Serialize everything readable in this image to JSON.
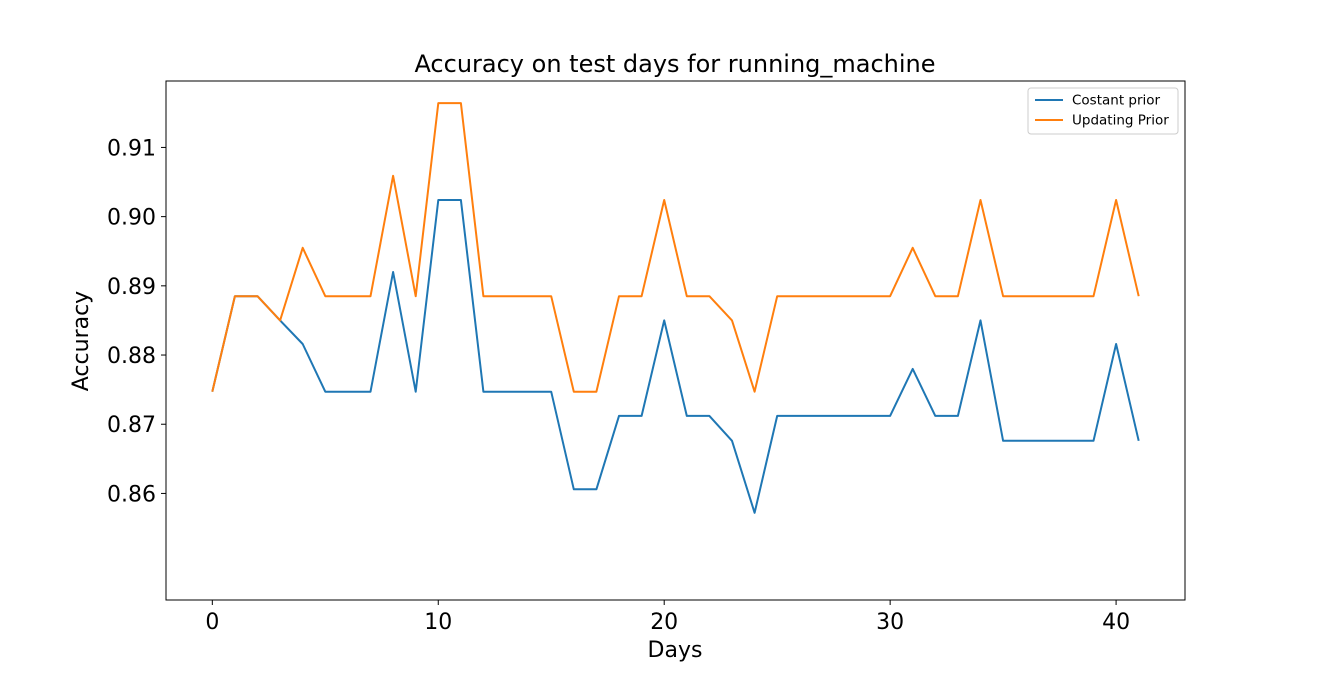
{
  "chart_data": {
    "type": "line",
    "title": "Accuracy on test days for running_machine",
    "xlabel": "Days",
    "ylabel": "Accuracy",
    "xlim": [
      -2.05,
      43.05
    ],
    "ylim": [
      0.8446,
      0.9196
    ],
    "xticks": [
      0,
      10,
      20,
      30,
      40
    ],
    "xtick_labels": [
      "0",
      "10",
      "20",
      "30",
      "40"
    ],
    "yticks": [
      0.86,
      0.87,
      0.88,
      0.89,
      0.9,
      0.91
    ],
    "ytick_labels": [
      "0.86",
      "0.87",
      "0.88",
      "0.89",
      "0.90",
      "0.91"
    ],
    "grid": false,
    "legend_position": "top-right",
    "x": [
      0,
      1,
      2,
      3,
      4,
      5,
      6,
      7,
      8,
      9,
      10,
      11,
      12,
      13,
      14,
      15,
      16,
      17,
      18,
      19,
      20,
      21,
      22,
      23,
      24,
      25,
      26,
      27,
      28,
      29,
      30,
      31,
      32,
      33,
      34,
      35,
      36,
      37,
      38,
      39,
      40,
      41
    ],
    "series": [
      {
        "name": "Costant prior",
        "color": "#1f77b4",
        "values": [
          0.8747,
          0.8885,
          0.8885,
          0.885,
          0.8816,
          0.8747,
          0.8747,
          0.8747,
          0.892,
          0.8747,
          0.9024,
          0.9024,
          0.8747,
          0.8747,
          0.8747,
          0.8747,
          0.8606,
          0.8606,
          0.8712,
          0.8712,
          0.885,
          0.8712,
          0.8712,
          0.8676,
          0.8572,
          0.8712,
          0.8712,
          0.8712,
          0.8712,
          0.8712,
          0.8712,
          0.878,
          0.8712,
          0.8712,
          0.885,
          0.8676,
          0.8676,
          0.8676,
          0.8676,
          0.8676,
          0.8816,
          0.8676
        ]
      },
      {
        "name": "Updating Prior",
        "color": "#ff7f0e",
        "values": [
          0.8747,
          0.8885,
          0.8885,
          0.885,
          0.8955,
          0.8885,
          0.8885,
          0.8885,
          0.9059,
          0.8885,
          0.9164,
          0.9164,
          0.8885,
          0.8885,
          0.8885,
          0.8885,
          0.8747,
          0.8747,
          0.8885,
          0.8885,
          0.9024,
          0.8885,
          0.8885,
          0.885,
          0.8747,
          0.8885,
          0.8885,
          0.8885,
          0.8885,
          0.8885,
          0.8885,
          0.8955,
          0.8885,
          0.8885,
          0.9024,
          0.8885,
          0.8885,
          0.8885,
          0.8885,
          0.8885,
          0.9024,
          0.8885
        ]
      }
    ]
  }
}
